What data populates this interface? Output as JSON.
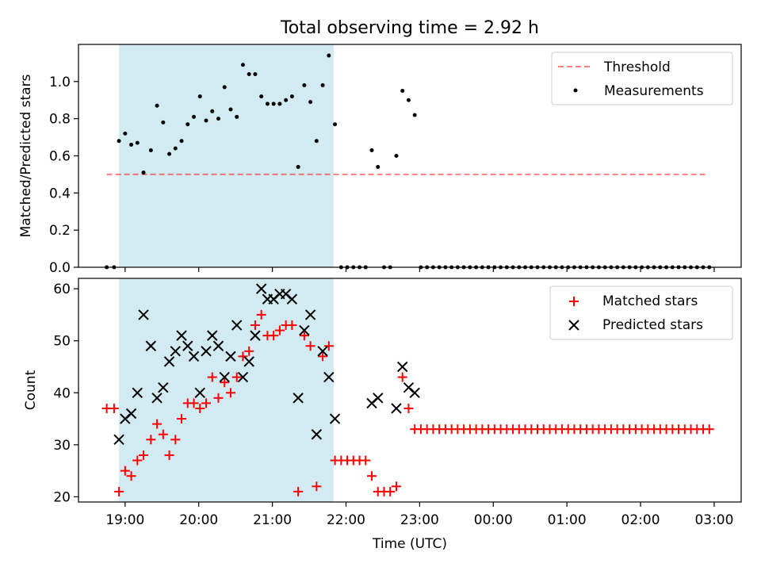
{
  "title": "Total observing time = 2.92 h",
  "colors": {
    "shade": "#add8e6",
    "threshold": "#ff0000",
    "measurements": "#000000",
    "matched": "#ff0000",
    "predicted": "#000000"
  },
  "x_axis": {
    "label": "Time (UTC)",
    "ticks": [
      "19:00",
      "20:00",
      "21:00",
      "22:00",
      "23:00",
      "00:00",
      "01:00",
      "02:00",
      "03:00"
    ]
  },
  "chart_data": [
    {
      "type": "scatter",
      "ylabel": "Matched/Predicted stars",
      "ylim": [
        0,
        1.2
      ],
      "yticks": [
        "0.0",
        "0.2",
        "0.4",
        "0.6",
        "0.8",
        "1.0"
      ],
      "xlim": [
        "18:22",
        "03:22"
      ],
      "shaded_interval": [
        "18:55",
        "21:50"
      ],
      "threshold": {
        "name": "Threshold",
        "value": 0.5,
        "x_range": [
          "18:45",
          "02:55"
        ]
      },
      "legend": {
        "position": "top-right",
        "entries": [
          "Threshold",
          "Measurements"
        ]
      },
      "series": [
        {
          "name": "Measurements",
          "points": [
            [
              "18:45",
              0.0
            ],
            [
              "18:51",
              0.0
            ],
            [
              "18:55",
              0.68
            ],
            [
              "19:00",
              0.72
            ],
            [
              "19:05",
              0.66
            ],
            [
              "19:10",
              0.67
            ],
            [
              "19:15",
              0.51
            ],
            [
              "19:21",
              0.63
            ],
            [
              "19:26",
              0.87
            ],
            [
              "19:31",
              0.78
            ],
            [
              "19:36",
              0.61
            ],
            [
              "19:41",
              0.64
            ],
            [
              "19:46",
              0.68
            ],
            [
              "19:51",
              0.77
            ],
            [
              "19:56",
              0.81
            ],
            [
              "20:01",
              0.92
            ],
            [
              "20:06",
              0.79
            ],
            [
              "20:11",
              0.84
            ],
            [
              "20:16",
              0.8
            ],
            [
              "20:21",
              0.97
            ],
            [
              "20:26",
              0.85
            ],
            [
              "20:31",
              0.81
            ],
            [
              "20:36",
              1.09
            ],
            [
              "20:41",
              1.04
            ],
            [
              "20:46",
              1.04
            ],
            [
              "20:51",
              0.92
            ],
            [
              "20:56",
              0.88
            ],
            [
              "21:01",
              0.88
            ],
            [
              "21:06",
              0.88
            ],
            [
              "21:11",
              0.9
            ],
            [
              "21:16",
              0.92
            ],
            [
              "21:21",
              0.54
            ],
            [
              "21:26",
              0.98
            ],
            [
              "21:31",
              0.89
            ],
            [
              "21:36",
              0.68
            ],
            [
              "21:41",
              0.98
            ],
            [
              "21:46",
              1.14
            ],
            [
              "21:51",
              0.77
            ],
            [
              "21:56",
              0.0
            ],
            [
              "22:01",
              0.0
            ],
            [
              "22:06",
              0.0
            ],
            [
              "22:11",
              0.0
            ],
            [
              "22:16",
              0.0
            ],
            [
              "22:21",
              0.63
            ],
            [
              "22:26",
              0.54
            ],
            [
              "22:31",
              0.0
            ],
            [
              "22:36",
              0.0
            ],
            [
              "22:41",
              0.6
            ],
            [
              "22:46",
              0.95
            ],
            [
              "22:51",
              0.9
            ],
            [
              "22:56",
              0.82
            ],
            [
              "23:01",
              0.0
            ],
            [
              "23:06",
              0.0
            ],
            [
              "23:11",
              0.0
            ],
            [
              "23:16",
              0.0
            ],
            [
              "23:21",
              0.0
            ],
            [
              "23:26",
              0.0
            ],
            [
              "23:31",
              0.0
            ],
            [
              "23:36",
              0.0
            ],
            [
              "23:41",
              0.0
            ],
            [
              "23:46",
              0.0
            ],
            [
              "23:51",
              0.0
            ],
            [
              "23:56",
              0.0
            ],
            [
              "00:01",
              0.0
            ],
            [
              "00:06",
              0.0
            ],
            [
              "00:11",
              0.0
            ],
            [
              "00:16",
              0.0
            ],
            [
              "00:21",
              0.0
            ],
            [
              "00:26",
              0.0
            ],
            [
              "00:31",
              0.0
            ],
            [
              "00:36",
              0.0
            ],
            [
              "00:41",
              0.0
            ],
            [
              "00:46",
              0.0
            ],
            [
              "00:51",
              0.0
            ],
            [
              "00:56",
              0.0
            ],
            [
              "01:01",
              0.0
            ],
            [
              "01:06",
              0.0
            ],
            [
              "01:11",
              0.0
            ],
            [
              "01:16",
              0.0
            ],
            [
              "01:21",
              0.0
            ],
            [
              "01:26",
              0.0
            ],
            [
              "01:31",
              0.0
            ],
            [
              "01:36",
              0.0
            ],
            [
              "01:41",
              0.0
            ],
            [
              "01:46",
              0.0
            ],
            [
              "01:51",
              0.0
            ],
            [
              "01:56",
              0.0
            ],
            [
              "02:01",
              0.0
            ],
            [
              "02:06",
              0.0
            ],
            [
              "02:11",
              0.0
            ],
            [
              "02:16",
              0.0
            ],
            [
              "02:21",
              0.0
            ],
            [
              "02:26",
              0.0
            ],
            [
              "02:31",
              0.0
            ],
            [
              "02:36",
              0.0
            ],
            [
              "02:41",
              0.0
            ],
            [
              "02:46",
              0.0
            ],
            [
              "02:51",
              0.0
            ],
            [
              "02:56",
              0.0
            ]
          ]
        }
      ]
    },
    {
      "type": "scatter",
      "ylabel": "Count",
      "ylim": [
        19,
        62
      ],
      "yticks": [
        "20",
        "30",
        "40",
        "50",
        "60"
      ],
      "xlim": [
        "18:22",
        "03:22"
      ],
      "shaded_interval": [
        "18:55",
        "21:50"
      ],
      "legend": {
        "position": "top-right",
        "entries": [
          "Matched stars",
          "Predicted stars"
        ]
      },
      "series": [
        {
          "name": "Matched stars",
          "marker": "plus",
          "points": [
            [
              "18:45",
              37
            ],
            [
              "18:51",
              37
            ],
            [
              "18:55",
              21
            ],
            [
              "19:00",
              25
            ],
            [
              "19:05",
              24
            ],
            [
              "19:10",
              27
            ],
            [
              "19:15",
              28
            ],
            [
              "19:21",
              31
            ],
            [
              "19:26",
              34
            ],
            [
              "19:31",
              32
            ],
            [
              "19:36",
              28
            ],
            [
              "19:41",
              31
            ],
            [
              "19:46",
              35
            ],
            [
              "19:51",
              38
            ],
            [
              "19:56",
              38
            ],
            [
              "20:01",
              37
            ],
            [
              "20:06",
              38
            ],
            [
              "20:11",
              43
            ],
            [
              "20:16",
              39
            ],
            [
              "20:21",
              42
            ],
            [
              "20:26",
              40
            ],
            [
              "20:31",
              43
            ],
            [
              "20:36",
              47
            ],
            [
              "20:41",
              48
            ],
            [
              "20:46",
              53
            ],
            [
              "20:51",
              55
            ],
            [
              "20:56",
              51
            ],
            [
              "21:01",
              51
            ],
            [
              "21:06",
              52
            ],
            [
              "21:11",
              53
            ],
            [
              "21:16",
              53
            ],
            [
              "21:21",
              21
            ],
            [
              "21:26",
              51
            ],
            [
              "21:31",
              49
            ],
            [
              "21:36",
              22
            ],
            [
              "21:41",
              47
            ],
            [
              "21:46",
              49
            ],
            [
              "21:51",
              27
            ],
            [
              "21:56",
              27
            ],
            [
              "22:01",
              27
            ],
            [
              "22:06",
              27
            ],
            [
              "22:11",
              27
            ],
            [
              "22:16",
              27
            ],
            [
              "22:21",
              24
            ],
            [
              "22:26",
              21
            ],
            [
              "22:31",
              21
            ],
            [
              "22:36",
              21
            ],
            [
              "22:41",
              22
            ],
            [
              "22:46",
              43
            ],
            [
              "22:51",
              37
            ],
            [
              "22:56",
              33
            ],
            [
              "23:01",
              33
            ],
            [
              "23:06",
              33
            ],
            [
              "23:11",
              33
            ],
            [
              "23:16",
              33
            ],
            [
              "23:21",
              33
            ],
            [
              "23:26",
              33
            ],
            [
              "23:31",
              33
            ],
            [
              "23:36",
              33
            ],
            [
              "23:41",
              33
            ],
            [
              "23:46",
              33
            ],
            [
              "23:51",
              33
            ],
            [
              "23:56",
              33
            ],
            [
              "00:01",
              33
            ],
            [
              "00:06",
              33
            ],
            [
              "00:11",
              33
            ],
            [
              "00:16",
              33
            ],
            [
              "00:21",
              33
            ],
            [
              "00:26",
              33
            ],
            [
              "00:31",
              33
            ],
            [
              "00:36",
              33
            ],
            [
              "00:41",
              33
            ],
            [
              "00:46",
              33
            ],
            [
              "00:51",
              33
            ],
            [
              "00:56",
              33
            ],
            [
              "01:01",
              33
            ],
            [
              "01:06",
              33
            ],
            [
              "01:11",
              33
            ],
            [
              "01:16",
              33
            ],
            [
              "01:21",
              33
            ],
            [
              "01:26",
              33
            ],
            [
              "01:31",
              33
            ],
            [
              "01:36",
              33
            ],
            [
              "01:41",
              33
            ],
            [
              "01:46",
              33
            ],
            [
              "01:51",
              33
            ],
            [
              "01:56",
              33
            ],
            [
              "02:01",
              33
            ],
            [
              "02:06",
              33
            ],
            [
              "02:11",
              33
            ],
            [
              "02:16",
              33
            ],
            [
              "02:21",
              33
            ],
            [
              "02:26",
              33
            ],
            [
              "02:31",
              33
            ],
            [
              "02:36",
              33
            ],
            [
              "02:41",
              33
            ],
            [
              "02:46",
              33
            ],
            [
              "02:51",
              33
            ],
            [
              "02:56",
              33
            ]
          ]
        },
        {
          "name": "Predicted stars",
          "marker": "x",
          "points": [
            [
              "18:55",
              31
            ],
            [
              "19:00",
              35
            ],
            [
              "19:05",
              36
            ],
            [
              "19:10",
              40
            ],
            [
              "19:15",
              55
            ],
            [
              "19:21",
              49
            ],
            [
              "19:26",
              39
            ],
            [
              "19:31",
              41
            ],
            [
              "19:36",
              46
            ],
            [
              "19:41",
              48
            ],
            [
              "19:46",
              51
            ],
            [
              "19:51",
              49
            ],
            [
              "19:56",
              47
            ],
            [
              "20:01",
              40
            ],
            [
              "20:06",
              48
            ],
            [
              "20:11",
              51
            ],
            [
              "20:16",
              49
            ],
            [
              "20:21",
              43
            ],
            [
              "20:26",
              47
            ],
            [
              "20:31",
              53
            ],
            [
              "20:36",
              43
            ],
            [
              "20:41",
              46
            ],
            [
              "20:46",
              51
            ],
            [
              "20:51",
              60
            ],
            [
              "20:56",
              58
            ],
            [
              "21:01",
              58
            ],
            [
              "21:06",
              59
            ],
            [
              "21:11",
              59
            ],
            [
              "21:16",
              58
            ],
            [
              "21:21",
              39
            ],
            [
              "21:26",
              52
            ],
            [
              "21:31",
              55
            ],
            [
              "21:36",
              32
            ],
            [
              "21:41",
              48
            ],
            [
              "21:46",
              43
            ],
            [
              "21:51",
              35
            ],
            [
              "22:21",
              38
            ],
            [
              "22:26",
              39
            ],
            [
              "22:41",
              37
            ],
            [
              "22:46",
              45
            ],
            [
              "22:51",
              41
            ],
            [
              "22:56",
              40
            ]
          ]
        }
      ]
    }
  ]
}
